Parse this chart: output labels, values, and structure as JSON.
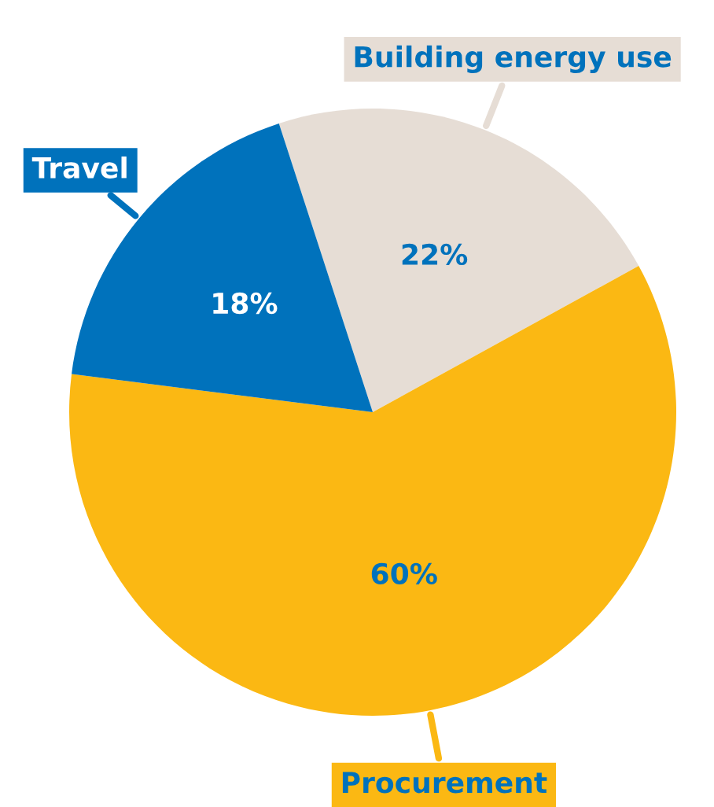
{
  "chart_data": {
    "type": "pie",
    "categories": [
      "Building energy use",
      "Procurement",
      "Travel"
    ],
    "values": [
      22,
      60,
      18
    ],
    "colors": [
      "#e6ddd5",
      "#fbb813",
      "#0072bc"
    ],
    "value_labels": [
      "22%",
      "60%",
      "18%"
    ],
    "legend": false
  }
}
